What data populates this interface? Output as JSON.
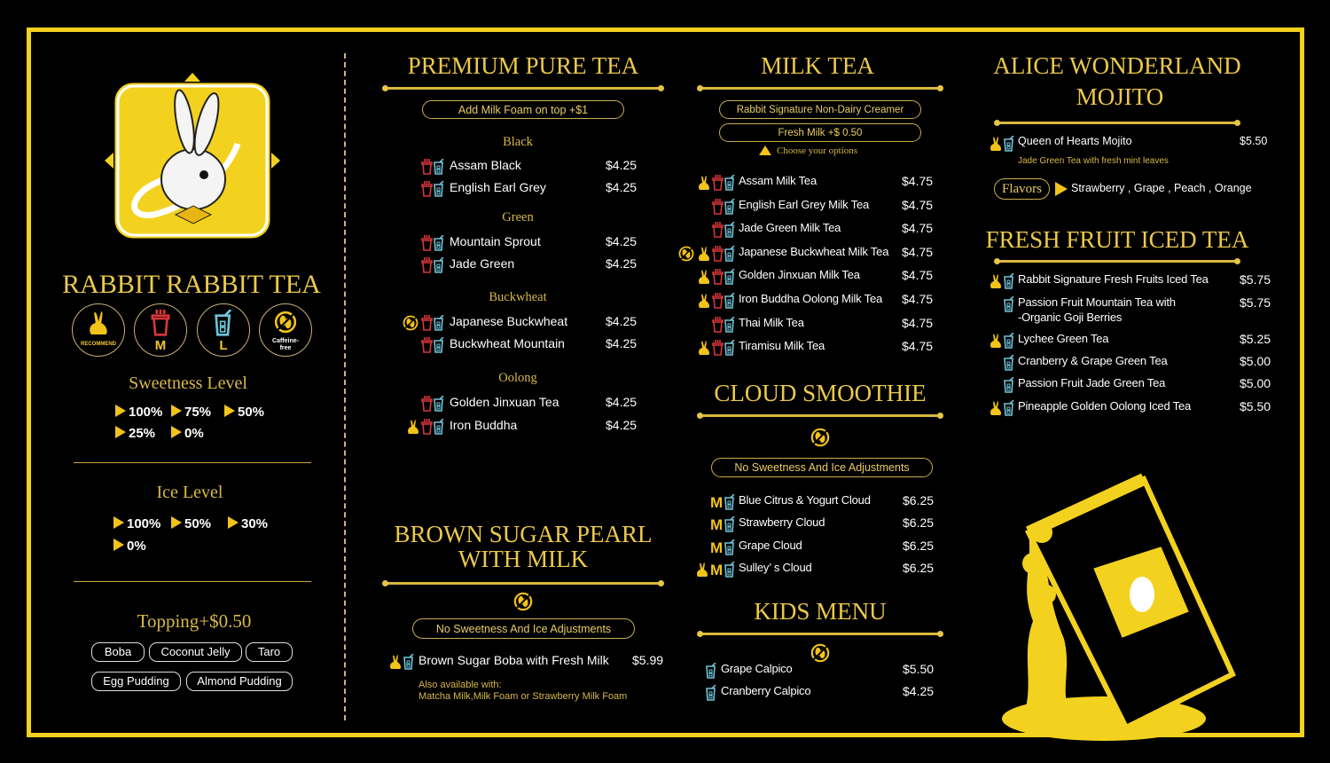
{
  "brand": {
    "name": "RABBIT RABBIT TEA"
  },
  "legend": [
    {
      "icon": "rabbit-icon",
      "label": "RECOMMEND"
    },
    {
      "icon": "cup-medium-icon",
      "label": "M"
    },
    {
      "icon": "cup-large-icon",
      "label": "L"
    },
    {
      "icon": "caffeine-free-icon",
      "label": "Caffeine-free"
    }
  ],
  "sweetness": {
    "title": "Sweetness  Level",
    "levels": [
      "100%",
      "75%",
      "50%",
      "25%",
      "0%"
    ]
  },
  "ice": {
    "title": "Ice Level",
    "levels": [
      "100%",
      "50%",
      "30%",
      "0%"
    ]
  },
  "topping": {
    "title": "Topping+$0.50",
    "items": [
      "Boba",
      "Coconut Jelly",
      "Taro",
      "Egg Pudding",
      "Almond Pudding"
    ]
  },
  "colors": {
    "accent": "#f3d21f",
    "title": "#ecc94b",
    "medium_cup": "#d8363a",
    "large_cup": "#6fc3d8"
  },
  "premium": {
    "title": "PREMIUM PURE TEA",
    "option": "Add Milk Foam on top  +$1",
    "groups": [
      {
        "name": "Black",
        "items": [
          {
            "name": "Assam Black",
            "price": "$4.25",
            "icons": [
              "M",
              "L"
            ]
          },
          {
            "name": "English Earl Grey",
            "price": "$4.25",
            "icons": [
              "M",
              "L"
            ]
          }
        ]
      },
      {
        "name": "Green",
        "items": [
          {
            "name": "Mountain Sprout",
            "price": "$4.25",
            "icons": [
              "M",
              "L"
            ]
          },
          {
            "name": "Jade Green",
            "price": "$4.25",
            "icons": [
              "M",
              "L"
            ]
          }
        ]
      },
      {
        "name": "Buckwheat",
        "items": [
          {
            "name": "Japanese Buckwheat",
            "price": "$4.25",
            "icons": [
              "CF",
              "M",
              "L"
            ]
          },
          {
            "name": "Buckwheat Mountain",
            "price": "$4.25",
            "icons": [
              "M",
              "L"
            ]
          }
        ]
      },
      {
        "name": "Oolong",
        "items": [
          {
            "name": "Golden Jinxuan Tea",
            "price": "$4.25",
            "icons": [
              "M",
              "L"
            ]
          },
          {
            "name": "Iron Buddha",
            "price": "$4.25",
            "icons": [
              "R",
              "M",
              "L"
            ]
          }
        ]
      }
    ]
  },
  "brown_sugar": {
    "title_line1": "BROWN SUGAR PEARL",
    "title_line2": "WITH MILK",
    "option": "No Sweetness And Ice Adjustments",
    "item": {
      "name": "Brown Sugar Boba with Fresh Milk",
      "price": "$5.99",
      "icons": [
        "R",
        "L"
      ]
    },
    "note_line1": "Also available with:",
    "note_line2": "Matcha Milk,Milk Foam or Strawberry Milk Foam"
  },
  "milk_tea": {
    "title": "MILK TEA",
    "options": [
      "Rabbit Signature  Non-Dairy Creamer",
      "Fresh Milk +$ 0.50"
    ],
    "choose": "Choose  your options",
    "items": [
      {
        "name": "Assam Milk Tea",
        "price": "$4.75",
        "icons": [
          "R",
          "M",
          "L"
        ]
      },
      {
        "name": "English Earl Grey Milk Tea",
        "price": "$4.75",
        "icons": [
          "M",
          "L"
        ]
      },
      {
        "name": "Jade Green Milk Tea",
        "price": "$4.75",
        "icons": [
          "M",
          "L"
        ]
      },
      {
        "name": "Japanese Buckwheat Milk Tea",
        "price": "$4.75",
        "icons": [
          "CF",
          "R",
          "M",
          "L"
        ]
      },
      {
        "name": "Golden Jinxuan Milk Tea",
        "price": "$4.75",
        "icons": [
          "R",
          "M",
          "L"
        ]
      },
      {
        "name": "Iron Buddha Oolong Milk Tea",
        "price": "$4.75",
        "icons": [
          "R",
          "M",
          "L"
        ]
      },
      {
        "name": "Thai Milk Tea",
        "price": "$4.75",
        "icons": [
          "M",
          "L"
        ]
      },
      {
        "name": "Tiramisu Milk Tea",
        "price": "$4.75",
        "icons": [
          "R",
          "M",
          "L"
        ]
      }
    ]
  },
  "cloud": {
    "title": "CLOUD SMOOTHIE",
    "option": "No Sweetness And Ice Adjustments",
    "items": [
      {
        "name": "Blue Citrus & Yogurt Cloud",
        "price": "$6.25",
        "icons": [
          "MT",
          "L"
        ]
      },
      {
        "name": "Strawberry Cloud",
        "price": "$6.25",
        "icons": [
          "MT",
          "L"
        ]
      },
      {
        "name": "Grape Cloud",
        "price": "$6.25",
        "icons": [
          "MT",
          "L"
        ]
      },
      {
        "name": "Sulley’ s Cloud",
        "price": "$6.25",
        "icons": [
          "R",
          "MT",
          "L"
        ]
      }
    ]
  },
  "kids": {
    "title": "KIDS MENU",
    "items": [
      {
        "name": "Grape Calpico",
        "price": "$5.50",
        "icons": [
          "L"
        ]
      },
      {
        "name": "Cranberry Calpico",
        "price": "$4.25",
        "icons": [
          "L"
        ]
      }
    ]
  },
  "mojito": {
    "title_line1": "ALICE WONDERLAND",
    "title_line2": "MOJITO",
    "item": {
      "name": "Queen of Hearts Mojito",
      "price": "$5.50",
      "icons": [
        "R",
        "L"
      ]
    },
    "desc": "Jade Green Tea  with fresh mint leaves",
    "flavors_label": "Flavors",
    "flavors": "Strawberry , Grape ,  Peach , Orange"
  },
  "fruit": {
    "title": "FRESH FRUIT ICED TEA",
    "items": [
      {
        "name": "Rabbit Signature Fresh Fruits Iced Tea",
        "price": "$5.75",
        "icons": [
          "R",
          "L"
        ]
      },
      {
        "name": "Passion Fruit Mountain Tea with",
        "name2": "-Organic Goji Berries",
        "price": "$5.75",
        "icons": [
          "L"
        ]
      },
      {
        "name": "Lychee Green Tea",
        "price": "$5.25",
        "icons": [
          "R",
          "L"
        ]
      },
      {
        "name": "Cranberry & Grape Green Tea",
        "price": "$5.00",
        "icons": [
          "L"
        ]
      },
      {
        "name": "Passion Fruit Jade Green Tea",
        "price": "$5.00",
        "icons": [
          "L"
        ]
      },
      {
        "name": "Pineapple Golden Oolong Iced Tea",
        "price": "$5.50",
        "icons": [
          "R",
          "L"
        ]
      }
    ]
  }
}
